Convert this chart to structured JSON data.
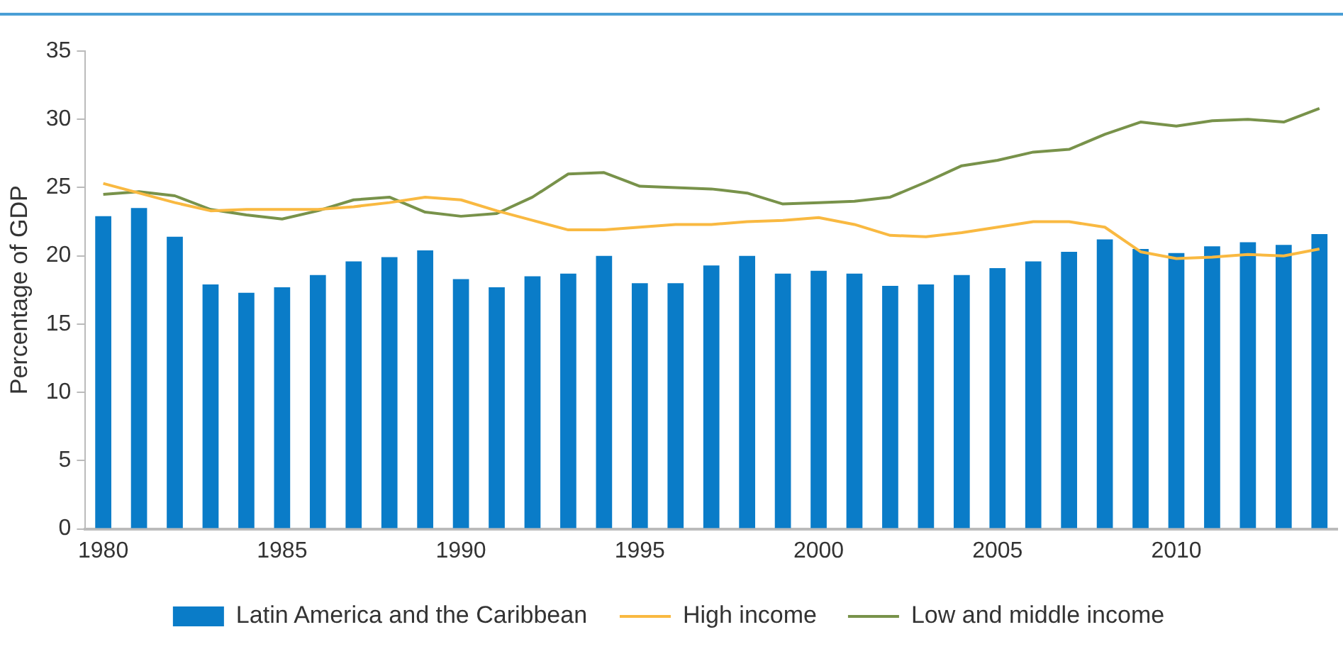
{
  "chart_data": {
    "type": "bar",
    "ylabel": "Percentage of GDP",
    "categories": [
      "1980",
      null,
      null,
      null,
      null,
      "1985",
      null,
      null,
      null,
      null,
      "1990",
      null,
      null,
      null,
      null,
      "1995",
      null,
      null,
      null,
      null,
      "2000",
      null,
      null,
      null,
      null,
      "2005",
      null,
      null,
      null,
      null,
      "2010",
      null,
      null,
      null,
      null
    ],
    "series": [
      {
        "name": "Latin America and the Caribbean",
        "color": "#0a7cc8",
        "values": [
          22.9,
          23.5,
          21.4,
          17.9,
          17.3,
          17.7,
          18.6,
          19.6,
          19.9,
          20.4,
          18.3,
          17.7,
          18.5,
          18.7,
          20.0,
          18.0,
          18.0,
          19.3,
          20.0,
          18.7,
          18.9,
          18.7,
          17.8,
          17.9,
          18.6,
          19.1,
          19.6,
          20.3,
          21.2,
          20.5,
          20.2,
          20.7,
          21.0,
          20.8,
          21.6
        ]
      },
      {
        "name": "High income",
        "type": "line",
        "color": "#f9b941",
        "values": [
          25.3,
          24.6,
          23.9,
          23.3,
          23.4,
          23.4,
          23.4,
          23.6,
          23.9,
          24.3,
          24.1,
          23.3,
          22.6,
          21.9,
          21.9,
          22.1,
          22.3,
          22.3,
          22.5,
          22.6,
          22.8,
          22.3,
          21.5,
          21.4,
          21.7,
          22.1,
          22.5,
          22.5,
          22.1,
          20.3,
          19.8,
          19.9,
          20.1,
          20.0,
          20.5
        ]
      },
      {
        "name": "Low and middle income",
        "type": "line",
        "color": "#78924a",
        "values": [
          24.5,
          24.7,
          24.4,
          23.4,
          23.0,
          22.7,
          23.3,
          24.1,
          24.3,
          23.2,
          22.9,
          23.1,
          24.3,
          26.0,
          26.1,
          25.1,
          25.0,
          24.9,
          24.6,
          23.8,
          23.9,
          24.0,
          24.3,
          25.4,
          26.6,
          27.0,
          27.6,
          27.8,
          28.9,
          29.8,
          29.5,
          29.9,
          30.0,
          29.8,
          30.8
        ]
      }
    ],
    "ylim": [
      0,
      35
    ],
    "yticks": [
      0,
      5,
      10,
      15,
      20,
      25,
      30,
      35
    ],
    "grid": false,
    "legend": "bottom",
    "marker": "none",
    "line_style": "solid"
  }
}
